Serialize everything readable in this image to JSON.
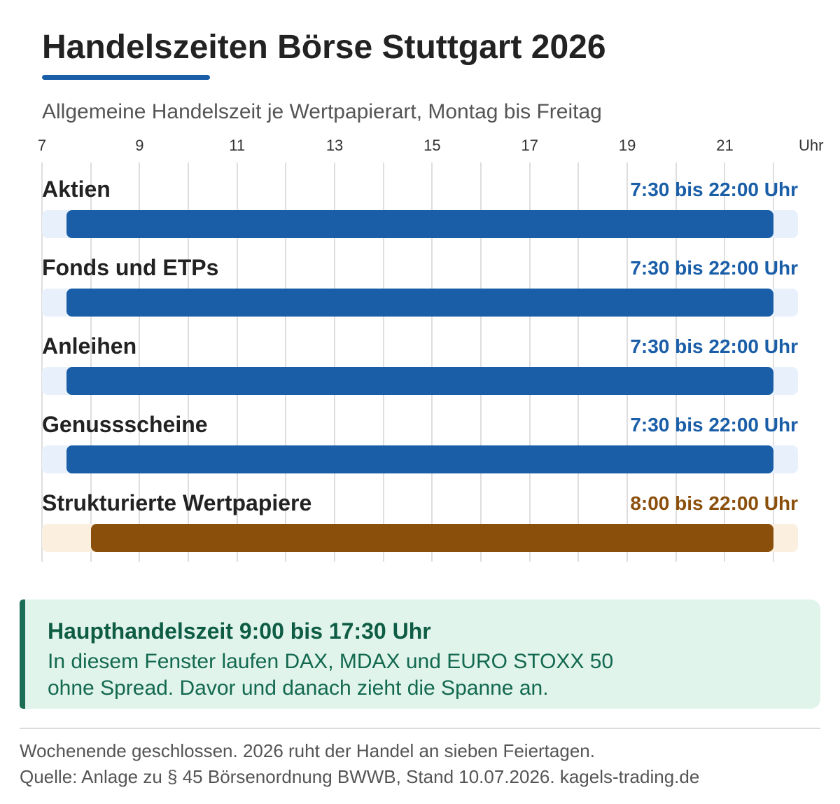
{
  "colors": {
    "text": "#222222",
    "muted": "#555555",
    "accent": "#1a5ea8",
    "grid": "#dedede",
    "callout_bg": "#e0f4ec",
    "callout_border": "#1b6e54",
    "callout_title": "#0e5c44",
    "callout_text": "#13694f"
  },
  "chart_data": {
    "type": "bar",
    "orientation": "horizontal",
    "title": "Handelszeiten Börse Stuttgart 2026",
    "subtitle": "Allgemeine Handelszeit je Wertpapierart, Montag bis Freitag",
    "xlabel": "Uhr",
    "xlim": [
      7,
      22.5
    ],
    "x_ticks": [
      7,
      9,
      11,
      13,
      15,
      17,
      19,
      21
    ],
    "grid": true,
    "legend": "none",
    "rows": [
      {
        "category": "Aktien",
        "start": 7.5,
        "end": 22,
        "range_label": "7:30 bis 22:00 Uhr",
        "color": "#1a5ea8",
        "track_color": "#e8f1fb"
      },
      {
        "category": "Fonds und ETPs",
        "start": 7.5,
        "end": 22,
        "range_label": "7:30 bis 22:00 Uhr",
        "color": "#1a5ea8",
        "track_color": "#e8f1fb"
      },
      {
        "category": "Anleihen",
        "start": 7.5,
        "end": 22,
        "range_label": "7:30 bis 22:00 Uhr",
        "color": "#1a5ea8",
        "track_color": "#e8f1fb"
      },
      {
        "category": "Genussscheine",
        "start": 7.5,
        "end": 22,
        "range_label": "7:30 bis 22:00 Uhr",
        "color": "#1a5ea8",
        "track_color": "#e8f1fb"
      },
      {
        "category": "Strukturierte Wertpapiere",
        "start": 8,
        "end": 22,
        "range_label": "8:00 bis 22:00 Uhr",
        "color": "#8b4f0c",
        "track_color": "#fbf0df"
      }
    ]
  },
  "callout": {
    "title": "Haupthandelszeit 9:00 bis 17:30 Uhr",
    "lines": [
      "In diesem Fenster laufen DAX, MDAX und EURO STOXX 50",
      "ohne Spread. Davor und danach zieht die Spanne an."
    ]
  },
  "footer": {
    "note": "Wochenende geschlossen. 2026 ruht der Handel an sieben Feiertagen.",
    "source": "Quelle: Anlage zu § 45 Börsenordnung BWWB, Stand 10.07.2026. kagels-trading.de"
  }
}
